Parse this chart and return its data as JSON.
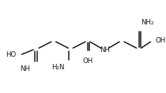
{
  "background": "#ffffff",
  "line_color": "#1a1a1a",
  "text_color": "#1a1a1a",
  "figsize": [
    2.11,
    1.16
  ],
  "dpi": 100,
  "lw": 1.1,
  "fs": 6.2
}
